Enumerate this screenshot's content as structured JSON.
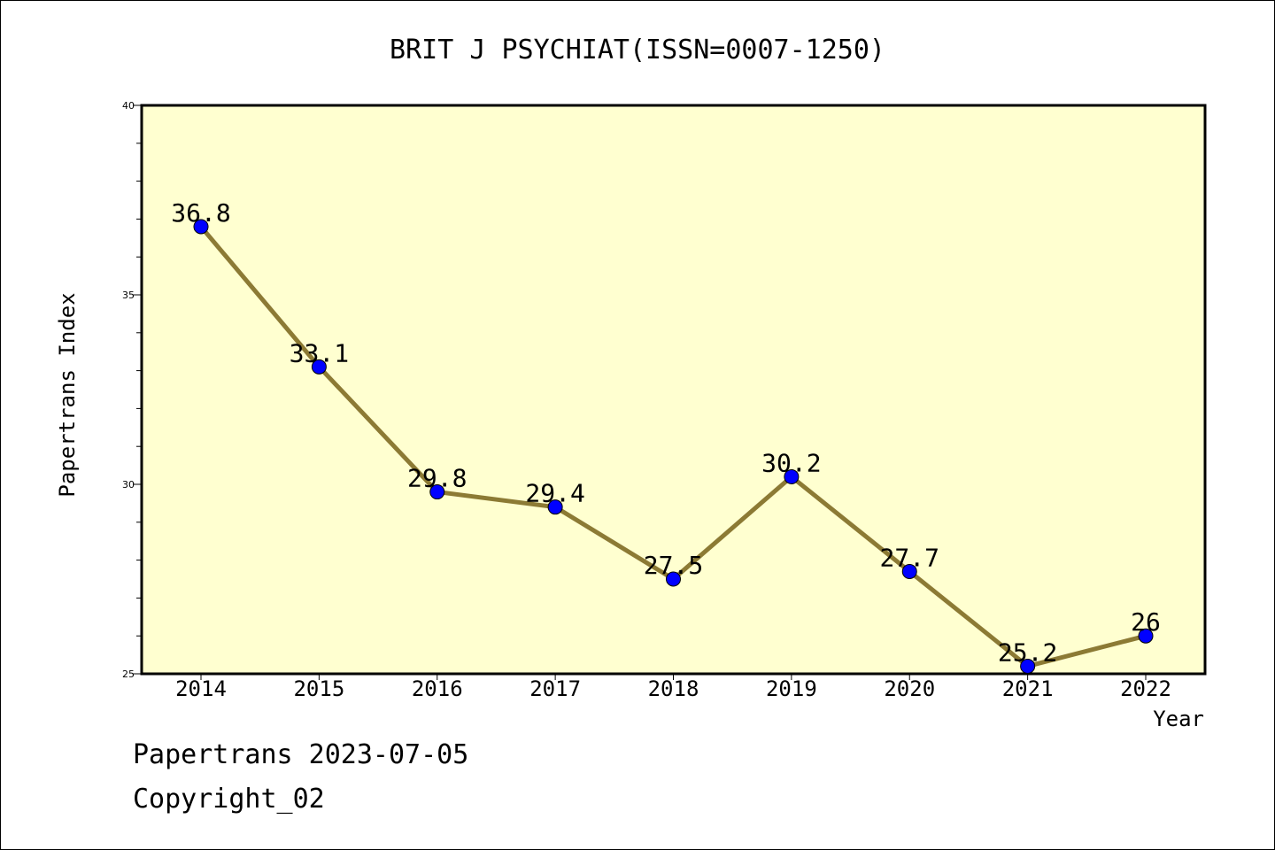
{
  "chart_data": {
    "type": "line",
    "title": "BRIT J PSYCHIAT(ISSN=0007-1250)",
    "xlabel": "Year",
    "ylabel": "Papertrans Index",
    "categories": [
      "2014",
      "2015",
      "2016",
      "2017",
      "2018",
      "2019",
      "2020",
      "2021",
      "2022"
    ],
    "values": [
      36.8,
      33.1,
      29.8,
      29.4,
      27.5,
      30.2,
      27.7,
      25.2,
      26
    ],
    "data_labels": [
      "36.8",
      "33.1",
      "29.8",
      "29.4",
      "27.5",
      "30.2",
      "27.7",
      "25.2",
      "26"
    ],
    "ylim": [
      25,
      40
    ],
    "yticks": [
      "25",
      "30",
      "35",
      "40"
    ],
    "grid": false,
    "colors": {
      "plot_background": "#ffffd0",
      "line": "#8c7a34",
      "marker": "#0000ff"
    }
  },
  "footer": {
    "line1": "Papertrans 2023-07-05",
    "line2": "Copyright_02"
  }
}
